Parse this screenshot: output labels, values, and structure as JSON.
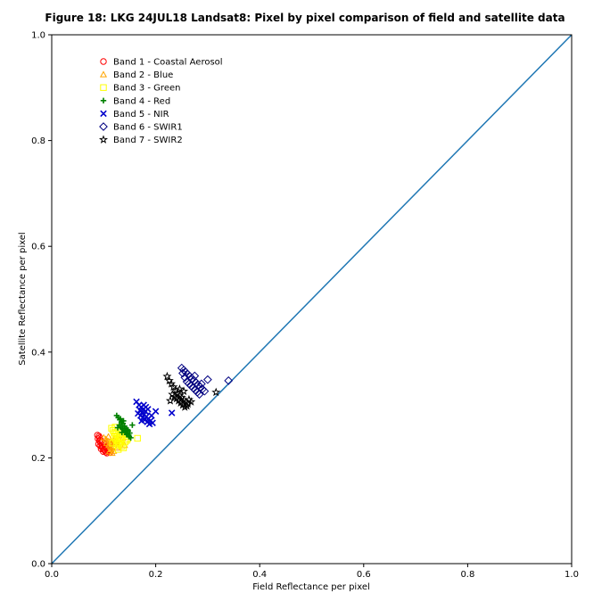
{
  "chart_data": {
    "type": "scatter",
    "title": "Figure 18: LKG 24JUL18  Landsat8: Pixel by pixel comparison of field and satellite data",
    "xlabel": "Field Reflectance per pixel",
    "ylabel": "Satellite Reflectance per pixel",
    "xlim": [
      0.0,
      1.0
    ],
    "ylim": [
      0.0,
      1.0
    ],
    "xticks": [
      "0.0",
      "0.2",
      "0.4",
      "0.6",
      "0.8",
      "1.0"
    ],
    "yticks": [
      "0.0",
      "0.2",
      "0.4",
      "0.6",
      "0.8",
      "1.0"
    ],
    "grid": false,
    "legend_position": "upper-left",
    "reference_line": {
      "x": [
        0.0,
        1.0
      ],
      "y": [
        0.0,
        1.0
      ],
      "color": "#1f77b4"
    },
    "series": [
      {
        "name": "Band 1 - Coastal Aerosol",
        "marker": "circle",
        "color": "#ff0000",
        "points": [
          [
            0.088,
            0.243
          ],
          [
            0.091,
            0.241
          ],
          [
            0.089,
            0.236
          ],
          [
            0.092,
            0.232
          ],
          [
            0.094,
            0.229
          ],
          [
            0.09,
            0.226
          ],
          [
            0.093,
            0.223
          ],
          [
            0.096,
            0.221
          ],
          [
            0.098,
            0.219
          ],
          [
            0.095,
            0.217
          ],
          [
            0.1,
            0.216
          ],
          [
            0.102,
            0.214
          ],
          [
            0.099,
            0.212
          ],
          [
            0.104,
            0.211
          ],
          [
            0.106,
            0.209
          ],
          [
            0.097,
            0.224
          ],
          [
            0.101,
            0.227
          ],
          [
            0.103,
            0.22
          ],
          [
            0.105,
            0.218
          ],
          [
            0.108,
            0.213
          ],
          [
            0.11,
            0.215
          ],
          [
            0.092,
            0.238
          ],
          [
            0.094,
            0.234
          ],
          [
            0.107,
            0.222
          ],
          [
            0.112,
            0.21
          ]
        ]
      },
      {
        "name": "Band 2 - Blue",
        "marker": "triangle",
        "color": "#ffa500",
        "points": [
          [
            0.1,
            0.238
          ],
          [
            0.104,
            0.235
          ],
          [
            0.108,
            0.232
          ],
          [
            0.112,
            0.229
          ],
          [
            0.115,
            0.226
          ],
          [
            0.118,
            0.233
          ],
          [
            0.106,
            0.228
          ],
          [
            0.11,
            0.224
          ],
          [
            0.113,
            0.221
          ],
          [
            0.117,
            0.219
          ],
          [
            0.12,
            0.236
          ],
          [
            0.122,
            0.231
          ],
          [
            0.109,
            0.24
          ],
          [
            0.114,
            0.216
          ],
          [
            0.119,
            0.213
          ],
          [
            0.125,
            0.227
          ],
          [
            0.128,
            0.222
          ],
          [
            0.111,
            0.212
          ],
          [
            0.116,
            0.209
          ],
          [
            0.121,
            0.23
          ],
          [
            0.13,
            0.235
          ],
          [
            0.133,
            0.229
          ],
          [
            0.14,
            0.224
          ],
          [
            0.126,
            0.219
          ],
          [
            0.137,
            0.238
          ]
        ]
      },
      {
        "name": "Band 3 - Green",
        "marker": "square",
        "color": "#ffff00",
        "points": [
          [
            0.115,
            0.256
          ],
          [
            0.118,
            0.252
          ],
          [
            0.121,
            0.248
          ],
          [
            0.124,
            0.245
          ],
          [
            0.127,
            0.242
          ],
          [
            0.13,
            0.238
          ],
          [
            0.133,
            0.235
          ],
          [
            0.12,
            0.24
          ],
          [
            0.123,
            0.236
          ],
          [
            0.126,
            0.232
          ],
          [
            0.129,
            0.229
          ],
          [
            0.132,
            0.226
          ],
          [
            0.135,
            0.222
          ],
          [
            0.138,
            0.219
          ],
          [
            0.141,
            0.23
          ],
          [
            0.144,
            0.233
          ],
          [
            0.117,
            0.228
          ],
          [
            0.125,
            0.224
          ],
          [
            0.134,
            0.25
          ],
          [
            0.137,
            0.246
          ],
          [
            0.143,
            0.241
          ],
          [
            0.165,
            0.237
          ],
          [
            0.128,
            0.216
          ],
          [
            0.122,
            0.258
          ],
          [
            0.146,
            0.236
          ]
        ]
      },
      {
        "name": "Band 4 - Red",
        "marker": "plus",
        "color": "#008000",
        "points": [
          [
            0.125,
            0.28
          ],
          [
            0.128,
            0.276
          ],
          [
            0.131,
            0.272
          ],
          [
            0.134,
            0.268
          ],
          [
            0.137,
            0.265
          ],
          [
            0.13,
            0.262
          ],
          [
            0.133,
            0.258
          ],
          [
            0.136,
            0.255
          ],
          [
            0.139,
            0.252
          ],
          [
            0.142,
            0.249
          ],
          [
            0.145,
            0.246
          ],
          [
            0.148,
            0.243
          ],
          [
            0.127,
            0.257
          ],
          [
            0.14,
            0.26
          ],
          [
            0.143,
            0.256
          ],
          [
            0.146,
            0.253
          ],
          [
            0.149,
            0.24
          ],
          [
            0.152,
            0.238
          ],
          [
            0.155,
            0.262
          ],
          [
            0.138,
            0.27
          ],
          [
            0.135,
            0.248
          ],
          [
            0.144,
            0.244
          ],
          [
            0.132,
            0.274
          ],
          [
            0.15,
            0.247
          ],
          [
            0.147,
            0.251
          ]
        ]
      },
      {
        "name": "Band 5 - NIR",
        "marker": "x",
        "color": "#0000cc",
        "points": [
          [
            0.163,
            0.306
          ],
          [
            0.168,
            0.3
          ],
          [
            0.172,
            0.296
          ],
          [
            0.176,
            0.292
          ],
          [
            0.18,
            0.288
          ],
          [
            0.17,
            0.29
          ],
          [
            0.174,
            0.286
          ],
          [
            0.178,
            0.282
          ],
          [
            0.182,
            0.278
          ],
          [
            0.186,
            0.274
          ],
          [
            0.19,
            0.27
          ],
          [
            0.194,
            0.266
          ],
          [
            0.166,
            0.284
          ],
          [
            0.171,
            0.28
          ],
          [
            0.175,
            0.276
          ],
          [
            0.179,
            0.272
          ],
          [
            0.184,
            0.268
          ],
          [
            0.188,
            0.264
          ],
          [
            0.2,
            0.288
          ],
          [
            0.231,
            0.285
          ],
          [
            0.181,
            0.296
          ],
          [
            0.185,
            0.292
          ],
          [
            0.177,
            0.3
          ],
          [
            0.173,
            0.27
          ],
          [
            0.192,
            0.28
          ]
        ]
      },
      {
        "name": "Band 6 - SWIR1",
        "marker": "diamond",
        "color": "#000080",
        "points": [
          [
            0.25,
            0.37
          ],
          [
            0.254,
            0.366
          ],
          [
            0.258,
            0.362
          ],
          [
            0.262,
            0.358
          ],
          [
            0.266,
            0.354
          ],
          [
            0.27,
            0.35
          ],
          [
            0.274,
            0.346
          ],
          [
            0.278,
            0.342
          ],
          [
            0.282,
            0.338
          ],
          [
            0.286,
            0.334
          ],
          [
            0.29,
            0.33
          ],
          [
            0.26,
            0.344
          ],
          [
            0.264,
            0.34
          ],
          [
            0.268,
            0.336
          ],
          [
            0.272,
            0.332
          ],
          [
            0.276,
            0.328
          ],
          [
            0.28,
            0.324
          ],
          [
            0.284,
            0.32
          ],
          [
            0.3,
            0.348
          ],
          [
            0.34,
            0.346
          ],
          [
            0.275,
            0.355
          ],
          [
            0.288,
            0.34
          ],
          [
            0.256,
            0.352
          ],
          [
            0.294,
            0.326
          ],
          [
            0.252,
            0.36
          ]
        ]
      },
      {
        "name": "Band 7 - SWIR2",
        "marker": "star",
        "color": "#000000",
        "points": [
          [
            0.222,
            0.354
          ],
          [
            0.226,
            0.346
          ],
          [
            0.23,
            0.34
          ],
          [
            0.234,
            0.334
          ],
          [
            0.238,
            0.328
          ],
          [
            0.242,
            0.322
          ],
          [
            0.246,
            0.318
          ],
          [
            0.25,
            0.314
          ],
          [
            0.254,
            0.31
          ],
          [
            0.258,
            0.306
          ],
          [
            0.262,
            0.302
          ],
          [
            0.24,
            0.312
          ],
          [
            0.244,
            0.308
          ],
          [
            0.248,
            0.304
          ],
          [
            0.252,
            0.3
          ],
          [
            0.256,
            0.296
          ],
          [
            0.26,
            0.298
          ],
          [
            0.232,
            0.32
          ],
          [
            0.236,
            0.316
          ],
          [
            0.264,
            0.31
          ],
          [
            0.268,
            0.306
          ],
          [
            0.316,
            0.324
          ],
          [
            0.228,
            0.308
          ],
          [
            0.246,
            0.33
          ],
          [
            0.254,
            0.326
          ]
        ]
      }
    ]
  }
}
